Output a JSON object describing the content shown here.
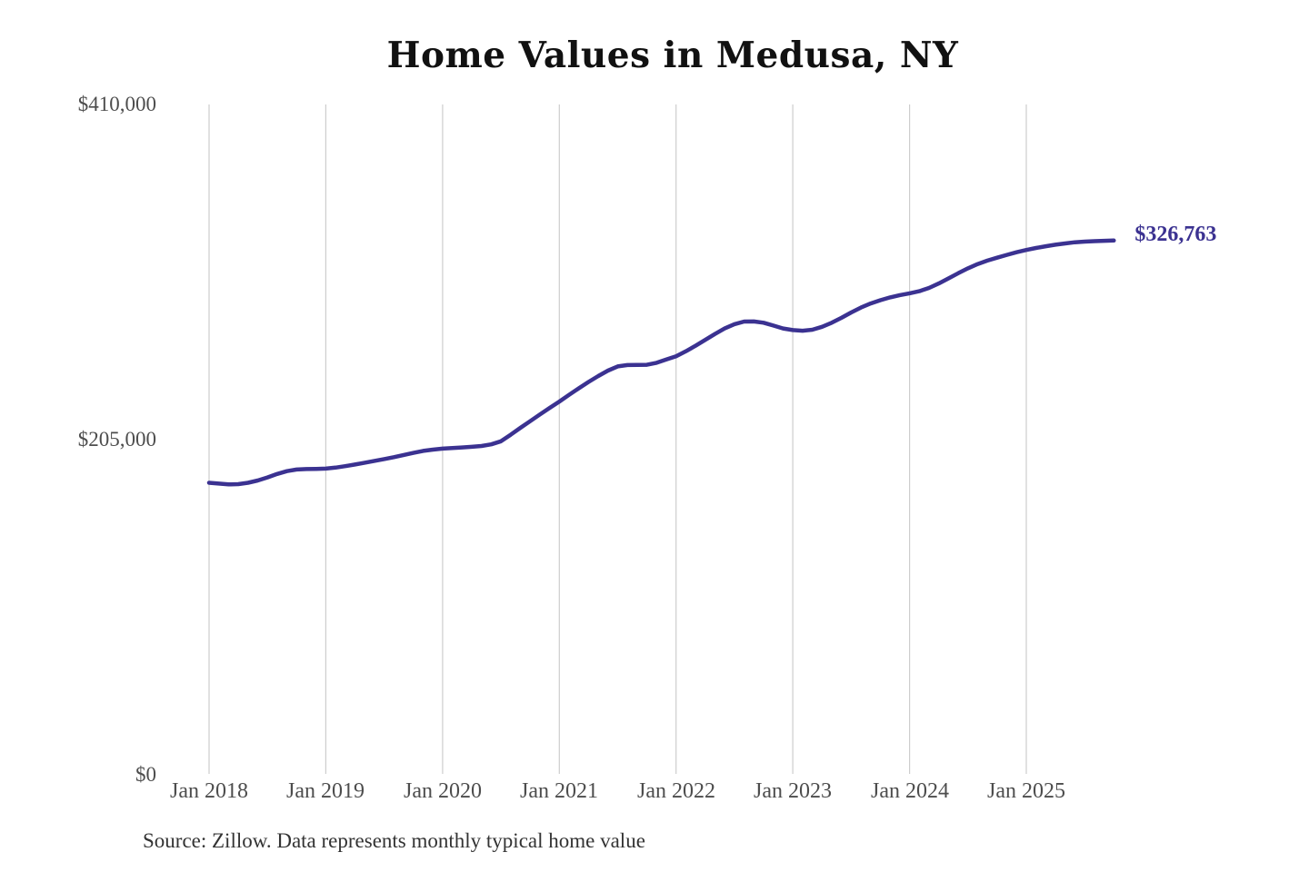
{
  "chart": {
    "title": "Home Values in Medusa, NY",
    "end_label": "$326,763",
    "source": "Source: Zillow. Data represents monthly typical home value"
  },
  "chart_data": {
    "type": "line",
    "title": "Home Values in Medusa, NY",
    "source": "Source: Zillow. Data represents monthly typical home value",
    "ylabel": "",
    "xlabel": "",
    "ylim": [
      0,
      410000
    ],
    "grid": "vertical-only",
    "legend": "none",
    "line_color": "#3b3291",
    "gridline_color": "#cdcdcd",
    "last_value": 326763,
    "last_point_label": "$326,763",
    "y_ticks": [
      {
        "label": "$410,000",
        "value": 410000
      },
      {
        "label": "$205,000",
        "value": 205000
      },
      {
        "label": "$0",
        "value": 0
      }
    ],
    "x_ticks": [
      "Jan 2018",
      "Jan 2019",
      "Jan 2020",
      "Jan 2021",
      "Jan 2022",
      "Jan 2023",
      "Jan 2024",
      "Jan 2025"
    ],
    "series": [
      {
        "name": "Monthly typical home value",
        "months": [
          "2018-01",
          "2018-02",
          "2018-03",
          "2018-04",
          "2018-05",
          "2018-06",
          "2018-07",
          "2018-08",
          "2018-09",
          "2018-10",
          "2018-11",
          "2018-12",
          "2019-01",
          "2019-02",
          "2019-03",
          "2019-04",
          "2019-05",
          "2019-06",
          "2019-07",
          "2019-08",
          "2019-09",
          "2019-10",
          "2019-11",
          "2019-12",
          "2020-01",
          "2020-02",
          "2020-03",
          "2020-04",
          "2020-05",
          "2020-06",
          "2020-07",
          "2020-08",
          "2020-09",
          "2020-10",
          "2020-11",
          "2020-12",
          "2021-01",
          "2021-02",
          "2021-03",
          "2021-04",
          "2021-05",
          "2021-06",
          "2021-07",
          "2021-08",
          "2021-09",
          "2021-10",
          "2021-11",
          "2021-12",
          "2022-01",
          "2022-02",
          "2022-03",
          "2022-04",
          "2022-05",
          "2022-06",
          "2022-07",
          "2022-08",
          "2022-09",
          "2022-10",
          "2022-11",
          "2022-12",
          "2023-01",
          "2023-02",
          "2023-03",
          "2023-04",
          "2023-05",
          "2023-06",
          "2023-07",
          "2023-08",
          "2023-09",
          "2023-10",
          "2023-11",
          "2023-12",
          "2024-01",
          "2024-02",
          "2024-03",
          "2024-04",
          "2024-05",
          "2024-06",
          "2024-07",
          "2024-08",
          "2024-09",
          "2024-10",
          "2024-11",
          "2024-12",
          "2025-01",
          "2025-02",
          "2025-03",
          "2025-04",
          "2025-05",
          "2025-06",
          "2025-07",
          "2025-08",
          "2025-09",
          "2025-10"
        ],
        "values": [
          178600,
          178100,
          177600,
          177800,
          178600,
          180000,
          181900,
          184000,
          185700,
          186700,
          187000,
          187100,
          187300,
          187900,
          188800,
          189800,
          190900,
          192000,
          193100,
          194300,
          195600,
          196900,
          198100,
          198900,
          199500,
          199900,
          200200,
          200600,
          201100,
          202100,
          204000,
          208000,
          212200,
          216300,
          220400,
          224400,
          228300,
          232400,
          236400,
          240300,
          243900,
          247200,
          249800,
          250600,
          250700,
          250800,
          252000,
          254000,
          256000,
          259000,
          262400,
          266000,
          269600,
          273000,
          275600,
          277200,
          277300,
          276500,
          274800,
          273000,
          272000,
          271600,
          272200,
          274000,
          276500,
          279500,
          282800,
          285800,
          288300,
          290300,
          292000,
          293400,
          294500,
          295800,
          297800,
          300500,
          303600,
          306800,
          309800,
          312400,
          314500,
          316300,
          318000,
          319600,
          321000,
          322200,
          323300,
          324200,
          325000,
          325700,
          326100,
          326400,
          326600,
          326763
        ]
      }
    ]
  }
}
